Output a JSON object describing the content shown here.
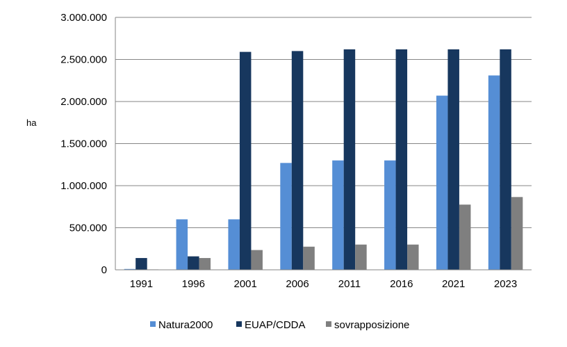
{
  "chart_data": {
    "type": "bar",
    "title": "",
    "xlabel": "",
    "ylabel": "ha",
    "ylim": [
      0,
      3000000
    ],
    "yticks": [
      0,
      500000,
      1000000,
      1500000,
      2000000,
      2500000,
      3000000
    ],
    "ytick_labels": [
      "0",
      "500.000",
      "1.000.000",
      "1.500.000",
      "2.000.000",
      "2.500.000",
      "3.000.000"
    ],
    "grid": true,
    "legend_position": "bottom",
    "categories": [
      "1991",
      "1996",
      "2001",
      "2006",
      "2011",
      "2016",
      "2021",
      "2023"
    ],
    "series": [
      {
        "name": "Natura2000",
        "color": "#558ED5",
        "values": [
          10000,
          600000,
          600000,
          1270000,
          1300000,
          1300000,
          2070000,
          2310000
        ]
      },
      {
        "name": "EUAP/CDDA",
        "color": "#17375E",
        "values": [
          140000,
          160000,
          2590000,
          2600000,
          2620000,
          2620000,
          2620000,
          2620000
        ]
      },
      {
        "name": "sovrapposizione",
        "color": "#7F7F7F",
        "values": [
          5000,
          140000,
          235000,
          275000,
          300000,
          300000,
          775000,
          865000
        ]
      }
    ]
  }
}
